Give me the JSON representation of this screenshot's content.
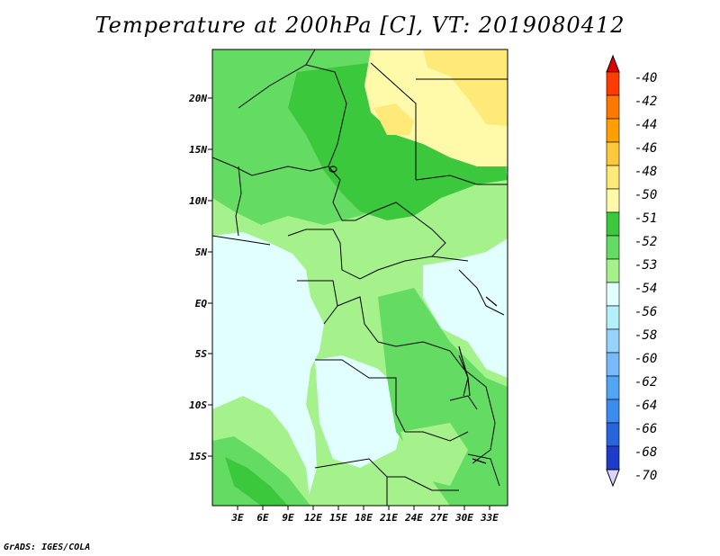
{
  "title": "Temperature at 200hPa [C], VT: 2019080412",
  "credit": "GrADS: IGES/COLA",
  "lat_labels": [
    "20N",
    "15N",
    "10N",
    "5N",
    "EQ",
    "5S",
    "10S",
    "15S"
  ],
  "lon_labels": [
    "3E",
    "6E",
    "9E",
    "12E",
    "15E",
    "18E",
    "21E",
    "24E",
    "27E",
    "30E",
    "33E"
  ],
  "colorbar": {
    "labels": [
      "-40",
      "-42",
      "-44",
      "-46",
      "-48",
      "-50",
      "-51",
      "-52",
      "-53",
      "-54",
      "-56",
      "-58",
      "-60",
      "-62",
      "-64",
      "-66",
      "-68",
      "-70"
    ],
    "colors": [
      "#f00000",
      "#ff3c00",
      "#ff7800",
      "#ffa000",
      "#ffc83c",
      "#ffe978",
      "#fffaaa",
      "#3cc83c",
      "#64dc64",
      "#a5f28c",
      "#e1ffff",
      "#b4f0fa",
      "#96d2fa",
      "#78b9fa",
      "#50a5f5",
      "#3c8cf0",
      "#2864dc",
      "#1e3cc8",
      "#0a1e8c"
    ],
    "top_arrow_color": "#e00000",
    "bottom_arrow_color": "#dcd2ff"
  },
  "map_colors": {
    "lightblue": "#e1ffff",
    "lightgreen": "#a5f28c",
    "green": "#64dc64",
    "darkgreen": "#3cc83c",
    "paleyellow": "#fffaaa",
    "yellow": "#ffe978"
  }
}
